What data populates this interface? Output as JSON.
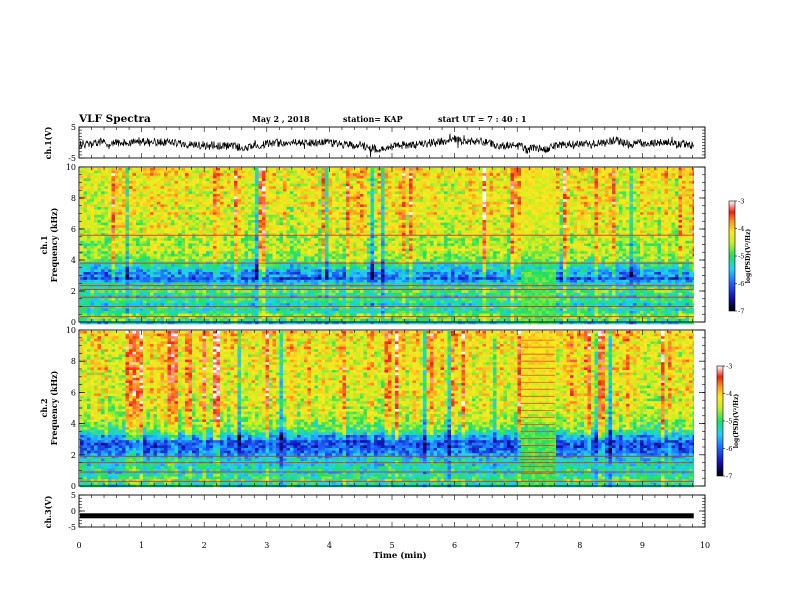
{
  "header": {
    "title": "VLF Spectra",
    "date": "May 2 , 2018",
    "station": "station= KAP",
    "start": "start  UT  =   7 : 40 : 1"
  },
  "chart_data": [
    {
      "type": "line",
      "id": "ch1-waveform",
      "ylabel": "ch.1(V)",
      "ylim": [
        -5,
        5
      ],
      "yticks": [
        {
          "v": 5,
          "label": "5"
        },
        {
          "v": -5,
          "label": "-5"
        }
      ],
      "xlim": [
        0,
        10
      ],
      "data_end_min": 9.82,
      "baseline": -0.5,
      "amplitude": 1.6
    },
    {
      "type": "heatmap",
      "id": "ch1-spectrogram",
      "ylabel_line1": "ch.1",
      "ylabel_line2": "Frequency  (kHz)",
      "ylim": [
        0,
        10
      ],
      "yticks": [
        {
          "v": 0,
          "label": "0"
        },
        {
          "v": 2,
          "label": "2"
        },
        {
          "v": 4,
          "label": "4"
        },
        {
          "v": 6,
          "label": "6"
        },
        {
          "v": 8,
          "label": "8"
        },
        {
          "v": 10,
          "label": "10"
        }
      ],
      "xlim": [
        0,
        10
      ],
      "data_end_min": 9.82,
      "colorbar": {
        "label": "log(PSD)(V²/Hz)",
        "range": [
          -7,
          -3
        ],
        "ticks": [
          {
            "v": -3,
            "label": "-3"
          },
          {
            "v": -4,
            "label": "-4"
          },
          {
            "v": -5,
            "label": "-5"
          },
          {
            "v": -6,
            "label": "-6"
          },
          {
            "v": -7,
            "label": "-7"
          }
        ]
      },
      "profile_khz": [
        [
          0,
          -5.4
        ],
        [
          0.4,
          -4.7
        ],
        [
          0.8,
          -5.1
        ],
        [
          1.3,
          -5.3
        ],
        [
          1.8,
          -5.2
        ],
        [
          2.2,
          -4.9
        ],
        [
          2.6,
          -5.3
        ],
        [
          2.85,
          -6.0
        ],
        [
          3.2,
          -5.8
        ],
        [
          3.6,
          -5.3
        ],
        [
          4.0,
          -4.9
        ],
        [
          5.0,
          -4.5
        ],
        [
          7.0,
          -4.3
        ],
        [
          10.0,
          -4.2
        ]
      ],
      "lines_khz": [
        0.35,
        1.0,
        1.6,
        2.1,
        2.35,
        3.8,
        5.6
      ],
      "disturbance_min": [
        7.05,
        7.6
      ]
    },
    {
      "type": "heatmap",
      "id": "ch2-spectrogram",
      "ylabel_line1": "ch.2",
      "ylabel_line2": "Frequency  (kHz)",
      "ylim": [
        0,
        10
      ],
      "yticks": [
        {
          "v": 0,
          "label": "0"
        },
        {
          "v": 2,
          "label": "2"
        },
        {
          "v": 4,
          "label": "4"
        },
        {
          "v": 6,
          "label": "6"
        },
        {
          "v": 8,
          "label": "8"
        },
        {
          "v": 10,
          "label": "10"
        }
      ],
      "xlim": [
        0,
        10
      ],
      "data_end_min": 9.82,
      "colorbar": {
        "label": "log(PSD)(V²/Hz)",
        "range": [
          -7,
          -3
        ],
        "ticks": [
          {
            "v": -3,
            "label": "-3"
          },
          {
            "v": -4,
            "label": "-4"
          },
          {
            "v": -5,
            "label": "-5"
          },
          {
            "v": -6,
            "label": "-6"
          },
          {
            "v": -7,
            "label": "-7"
          }
        ]
      },
      "profile_khz": [
        [
          0,
          -5.4
        ],
        [
          0.4,
          -4.9
        ],
        [
          0.8,
          -5.3
        ],
        [
          1.3,
          -5.4
        ],
        [
          1.8,
          -5.5
        ],
        [
          2.2,
          -5.8
        ],
        [
          2.6,
          -6.2
        ],
        [
          2.9,
          -6.0
        ],
        [
          3.3,
          -5.5
        ],
        [
          3.7,
          -5.0
        ],
        [
          4.2,
          -4.6
        ],
        [
          5.0,
          -4.4
        ],
        [
          7.0,
          -4.2
        ],
        [
          10.0,
          -4.1
        ]
      ],
      "lines_khz": [
        0.3,
        0.9,
        1.5,
        1.9
      ],
      "disturbance_min": [
        7.05,
        7.6
      ]
    },
    {
      "type": "line",
      "id": "ch3-waveform",
      "ylabel": "ch.3(V)",
      "ylim": [
        -5,
        5
      ],
      "yticks": [
        {
          "v": 5,
          "label": "5"
        },
        {
          "v": 0,
          "label": "0"
        },
        {
          "v": -5,
          "label": "-5"
        }
      ],
      "xlim": [
        0,
        10
      ],
      "data_end_min": 9.82,
      "baseline": -1.5,
      "amplitude": 0.35
    }
  ],
  "xaxis": {
    "label": "Time  (min)",
    "ticks": [
      {
        "v": 0,
        "label": "0"
      },
      {
        "v": 1,
        "label": "1"
      },
      {
        "v": 2,
        "label": "2"
      },
      {
        "v": 3,
        "label": "3"
      },
      {
        "v": 4,
        "label": "4"
      },
      {
        "v": 5,
        "label": "5"
      },
      {
        "v": 6,
        "label": "6"
      },
      {
        "v": 7,
        "label": "7"
      },
      {
        "v": 8,
        "label": "8"
      },
      {
        "v": 9,
        "label": "9"
      },
      {
        "v": 10,
        "label": "10"
      }
    ]
  }
}
